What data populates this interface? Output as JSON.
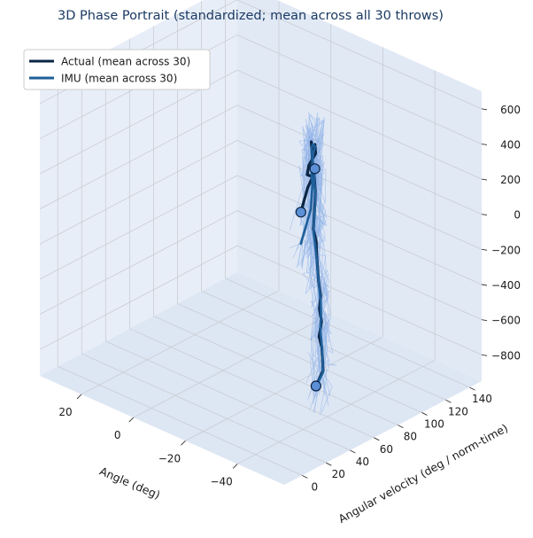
{
  "chart_data": {
    "type": "line",
    "title": "3D Phase Portrait (standardized; mean across all 30 throws)",
    "xlabel": "Angle (deg)",
    "ylabel": "Angular velocity (deg / norm-time)",
    "zlabel": "",
    "xlim": [
      -58,
      36
    ],
    "ylim": [
      -15,
      150
    ],
    "zlim": [
      -950,
      700
    ],
    "x_ticks": [
      "−40",
      "−20",
      "0",
      "20"
    ],
    "y_ticks": [
      "0",
      "20",
      "40",
      "60",
      "80",
      "100",
      "120",
      "140"
    ],
    "z_ticks": [
      "600",
      "400",
      "200",
      "0",
      "−200",
      "−400",
      "−600",
      "−800"
    ],
    "legend": {
      "placement": "upper-left",
      "entries": [
        {
          "label": "Actual (mean across 30)",
          "color": "#0b2545"
        },
        {
          "label": "IMU (mean across 30)",
          "color": "#1f5f99"
        }
      ]
    },
    "colors": {
      "actual": "#0b2545",
      "imu": "#1f5f99",
      "trials": "#8fb3e8",
      "pane": "#e8eef8",
      "marker": "#5b8fd6"
    },
    "grid": true,
    "series": [
      {
        "name": "Actual (mean across 30)",
        "points": [
          [
            -46,
            25,
            380
          ],
          [
            -44,
            35,
            470
          ],
          [
            -40,
            48,
            460
          ],
          [
            -36,
            52,
            430
          ],
          [
            -32,
            62,
            420
          ],
          [
            -30,
            72,
            440
          ],
          [
            -27,
            78,
            450
          ],
          [
            -23,
            85,
            360
          ],
          [
            -21,
            88,
            390
          ],
          [
            -18,
            95,
            300
          ],
          [
            -16,
            100,
            180
          ],
          [
            -15,
            104,
            140
          ],
          [
            -12,
            110,
            60
          ],
          [
            -12,
            111,
            -40
          ],
          [
            -10,
            115,
            -120
          ],
          [
            -10,
            114,
            -230
          ],
          [
            -8,
            118,
            -300
          ],
          [
            -10,
            116,
            -350
          ],
          [
            -12,
            112,
            -400
          ],
          [
            -16,
            105,
            -500
          ],
          [
            -20,
            98,
            -530
          ],
          [
            -20,
            97,
            -600
          ],
          [
            -24,
            90,
            -620
          ],
          [
            -24,
            88,
            -700
          ],
          [
            -26,
            86,
            -740
          ],
          [
            -32,
            74,
            -790
          ],
          [
            -38,
            55,
            -770
          ]
        ]
      },
      {
        "name": "IMU (mean across 30)",
        "points": [
          [
            -46,
            25,
            200
          ],
          [
            -42,
            42,
            310
          ],
          [
            -38,
            52,
            380
          ],
          [
            -34,
            60,
            420
          ],
          [
            -30,
            70,
            440
          ],
          [
            -27,
            78,
            440
          ],
          [
            -23,
            85,
            400
          ],
          [
            -21,
            88,
            350
          ],
          [
            -18,
            95,
            280
          ],
          [
            -16,
            100,
            180
          ],
          [
            -15,
            104,
            130
          ],
          [
            -12,
            110,
            40
          ],
          [
            -12,
            111,
            -50
          ],
          [
            -10,
            115,
            -140
          ],
          [
            -10,
            114,
            -240
          ],
          [
            -9,
            116,
            -310
          ],
          [
            -10,
            115,
            -360
          ],
          [
            -12,
            112,
            -420
          ],
          [
            -16,
            105,
            -500
          ],
          [
            -20,
            98,
            -560
          ],
          [
            -22,
            94,
            -610
          ],
          [
            -24,
            89,
            -660
          ],
          [
            -26,
            86,
            -730
          ],
          [
            -32,
            74,
            -800
          ],
          [
            -38,
            55,
            -770
          ]
        ]
      }
    ]
  }
}
